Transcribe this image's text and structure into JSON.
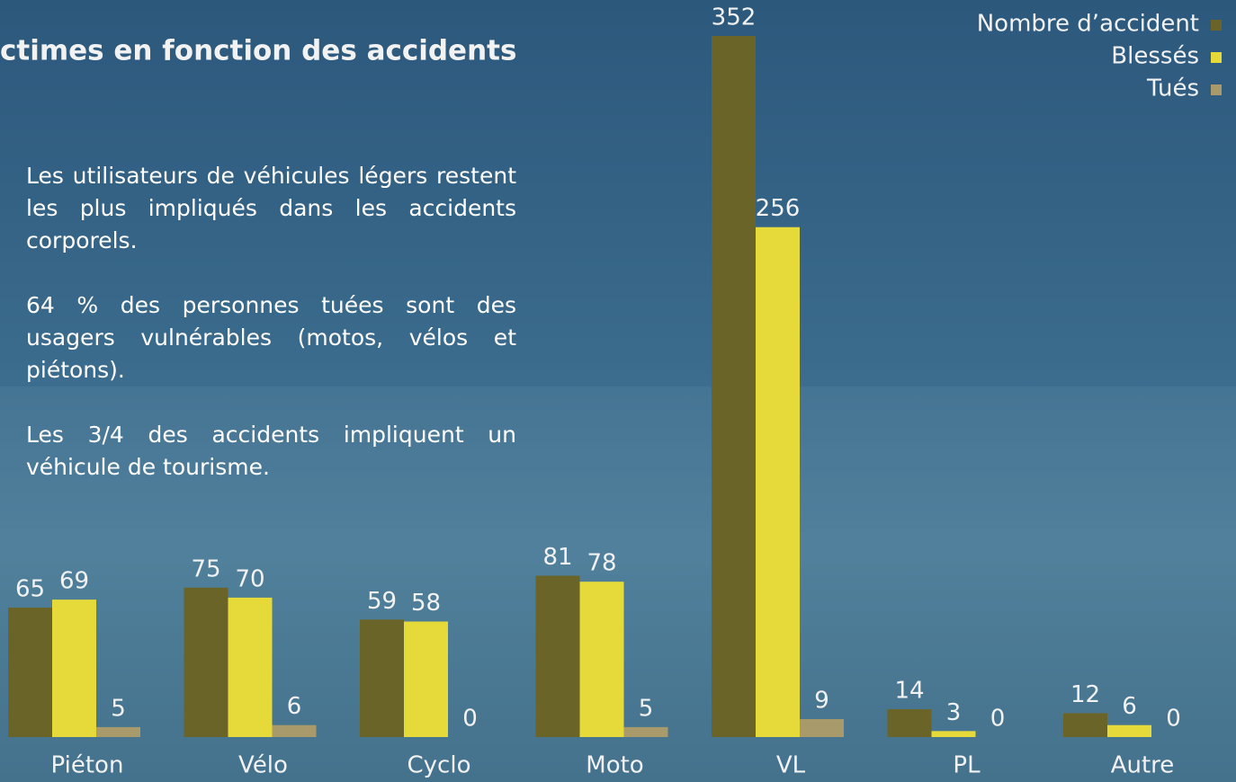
{
  "chart_data": {
    "type": "bar",
    "title": "ctimes en fonction des accidents",
    "annotations": [
      "Les utilisateurs de véhicules légers restent les plus impliqués dans les accidents corporels.",
      "64 % des personnes tuées sont des usagers vulnérables (motos, vélos et piétons).",
      "Les 3/4 des accidents impliquent un véhicule de tourisme."
    ],
    "categories": [
      "Piéton",
      "Vélo",
      "Cyclo",
      "Moto",
      "VL",
      "PL",
      "Autre"
    ],
    "series": [
      {
        "name": "Nombre d’accident",
        "color": "#6b6428",
        "values": [
          65,
          75,
          59,
          81,
          352,
          14,
          12
        ]
      },
      {
        "name": "Blessés",
        "color": "#e6d93a",
        "values": [
          69,
          70,
          58,
          78,
          256,
          3,
          6
        ]
      },
      {
        "name": "Tués",
        "color": "#a89a6a",
        "values": [
          5,
          6,
          0,
          5,
          9,
          0,
          0
        ]
      }
    ],
    "legend": "top-right",
    "grid": false
  }
}
